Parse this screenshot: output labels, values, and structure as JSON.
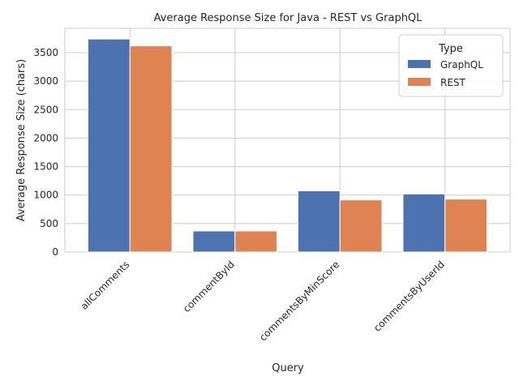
{
  "chart_data": {
    "type": "bar",
    "title": "Average Response Size for Java - REST vs GraphQL",
    "xlabel": "Query",
    "ylabel": "Average Response Size (chars)",
    "categories": [
      "allComments",
      "commentById",
      "commentsByMinScore",
      "commentsByUserId"
    ],
    "series": [
      {
        "name": "GraphQL",
        "color": "#4c72b0",
        "values": [
          3740,
          370,
          1075,
          1020
        ]
      },
      {
        "name": "REST",
        "color": "#dd8452",
        "values": [
          3620,
          370,
          915,
          930
        ]
      }
    ],
    "yticks": [
      0,
      500,
      1000,
      1500,
      2000,
      2500,
      3000,
      3500
    ],
    "ylim": [
      0,
      3927
    ],
    "grid": true,
    "legend": {
      "title": "Type",
      "placement": "top-right"
    }
  }
}
